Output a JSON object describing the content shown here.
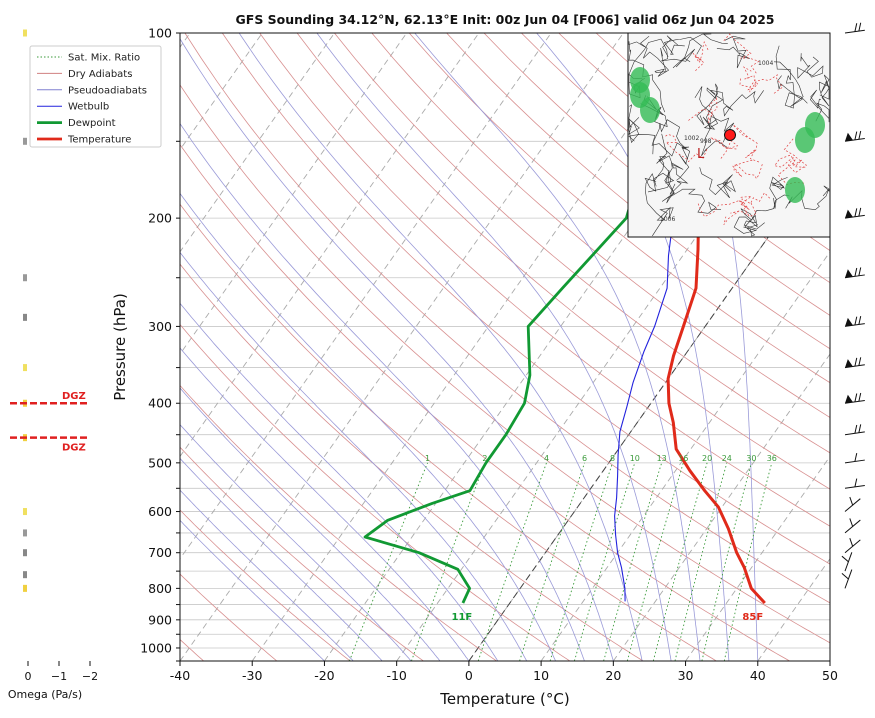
{
  "title": "GFS Sounding 34.12°N, 62.13°E Init: 00z Jun 04 [F006] valid 06z Jun 04 2025",
  "chart_data": {
    "type": "line",
    "title": "GFS Sounding 34.12°N, 62.13°E Init: 00z Jun 04 [F006] valid 06z Jun 04 2025",
    "xlabel": "Temperature (°C)",
    "ylabel": "Pressure (hPa)",
    "xlim": [
      -40,
      50
    ],
    "ylim": [
      1050,
      100
    ],
    "y_scale": "log",
    "grid": true,
    "legend_position": "top-left",
    "x_ticks": [
      -40,
      -30,
      -20,
      -10,
      0,
      10,
      20,
      30,
      40,
      50
    ],
    "y_ticks": [
      100,
      200,
      300,
      400,
      500,
      600,
      700,
      800,
      900,
      1000
    ],
    "legend": [
      {
        "label": "Sat. Mix. Ratio",
        "color": "#3a9a3a",
        "style": "dotted"
      },
      {
        "label": "Dry Adiabats",
        "color": "#d08080",
        "style": "solid"
      },
      {
        "label": "Pseudoadiabats",
        "color": "#8080d0",
        "style": "solid"
      },
      {
        "label": "Wetbulb",
        "color": "#2222dd",
        "style": "solid"
      },
      {
        "label": "Dewpoint",
        "color": "#119933",
        "style": "bold"
      },
      {
        "label": "Temperature",
        "color": "#e02a1a",
        "style": "bold"
      }
    ],
    "mixing_ratio_labels": [
      "1",
      "2",
      "4",
      "6",
      "8",
      "10",
      "13",
      "16",
      "20",
      "24",
      "30",
      "36"
    ],
    "mixing_ratio_values": [
      1,
      2,
      4,
      6,
      8,
      10,
      13,
      16,
      20,
      24,
      30,
      36
    ],
    "series": [
      {
        "name": "Temperature",
        "color": "#e02a1a",
        "points": [
          [
            35.3,
            845
          ],
          [
            32,
            800
          ],
          [
            29,
            740
          ],
          [
            26.5,
            700
          ],
          [
            23,
            640
          ],
          [
            19.5,
            590
          ],
          [
            16,
            555
          ],
          [
            12,
            515
          ],
          [
            8,
            475
          ],
          [
            5,
            430
          ],
          [
            2.5,
            400
          ],
          [
            0,
            365
          ],
          [
            -1.5,
            335
          ],
          [
            -3,
            300
          ],
          [
            -5,
            260
          ],
          [
            -8.5,
            225
          ],
          [
            -11.5,
            200
          ],
          [
            -15,
            170
          ],
          [
            -18.5,
            145
          ],
          [
            -22,
            120
          ],
          [
            -25,
            100
          ]
        ]
      },
      {
        "name": "Dewpoint",
        "color": "#119933",
        "points": [
          [
            -6.5,
            845
          ],
          [
            -7,
            800
          ],
          [
            -10.5,
            745
          ],
          [
            -17.5,
            700
          ],
          [
            -26.5,
            660
          ],
          [
            -25,
            620
          ],
          [
            -20.5,
            582
          ],
          [
            -16.5,
            555
          ],
          [
            -17,
            500
          ],
          [
            -17,
            450
          ],
          [
            -17.5,
            400
          ],
          [
            -19.5,
            360
          ],
          [
            -24.5,
            300
          ],
          [
            -23.5,
            260
          ],
          [
            -21.5,
            200
          ],
          [
            -24,
            170
          ],
          [
            -24.5,
            150
          ],
          [
            -22.5,
            125
          ],
          [
            -20.5,
            100
          ]
        ]
      },
      {
        "name": "Wetbulb",
        "color": "#2222dd",
        "points": [
          [
            15.8,
            840
          ],
          [
            14.5,
            800
          ],
          [
            12,
            740
          ],
          [
            10,
            700
          ],
          [
            8,
            655
          ],
          [
            6,
            610
          ],
          [
            4.5,
            570
          ],
          [
            2.5,
            525
          ],
          [
            0.5,
            485
          ],
          [
            -1.5,
            445
          ],
          [
            -3,
            405
          ],
          [
            -4.5,
            370
          ],
          [
            -6,
            330
          ],
          [
            -7,
            300
          ],
          [
            -9,
            260
          ],
          [
            -12,
            230
          ],
          [
            -15,
            200
          ],
          [
            -18,
            170
          ],
          [
            -20.5,
            145
          ],
          [
            -23,
            120
          ],
          [
            -25,
            100
          ]
        ]
      }
    ],
    "annotations": [
      {
        "text": "85F",
        "near": "Temperature surface",
        "color": "#e02a1a"
      },
      {
        "text": "11F",
        "near": "Dewpoint surface",
        "color": "#119933"
      }
    ],
    "inset_map": {
      "content": "surface pressure map with red location dot",
      "labels": [
        "1004",
        "1002",
        "998",
        "L",
        "1006"
      ]
    }
  },
  "omega_panel": {
    "xlabel": "Omega (Pa/s)",
    "x_ticks": [
      "0",
      "−1",
      "−2"
    ],
    "dgz_label": "DGZ",
    "dgz_levels": [
      400,
      455
    ],
    "bars": [
      {
        "p": 100,
        "color": "#f0e060"
      },
      {
        "p": 150,
        "color": "#999999"
      },
      {
        "p": 250,
        "color": "#999999"
      },
      {
        "p": 290,
        "color": "#888888"
      },
      {
        "p": 350,
        "color": "#f0e060"
      },
      {
        "p": 400,
        "color": "#f0d040"
      },
      {
        "p": 455,
        "color": "#f0d040"
      },
      {
        "p": 600,
        "color": "#f0e060"
      },
      {
        "p": 650,
        "color": "#999999"
      },
      {
        "p": 700,
        "color": "#888888"
      },
      {
        "p": 760,
        "color": "#888888"
      },
      {
        "p": 800,
        "color": "#f0d040"
      }
    ]
  },
  "wind_barbs_levels": [
    100,
    150,
    200,
    250,
    300,
    350,
    400,
    450,
    500,
    550,
    600,
    650,
    700,
    750,
    800
  ]
}
